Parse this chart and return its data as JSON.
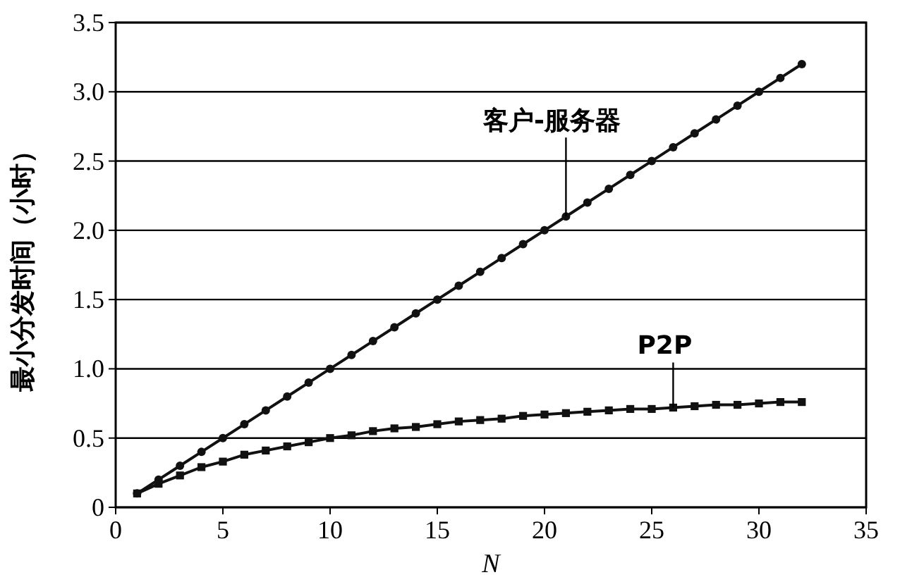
{
  "chart_data": {
    "type": "line",
    "xlabel": "N",
    "ylabel": "最小分发时间（小时）",
    "x": [
      1,
      2,
      3,
      4,
      5,
      6,
      7,
      8,
      9,
      10,
      11,
      12,
      13,
      14,
      15,
      16,
      17,
      18,
      19,
      20,
      21,
      22,
      23,
      24,
      25,
      26,
      27,
      28,
      29,
      30,
      31,
      32
    ],
    "series": [
      {
        "name": "客户-服务器",
        "color": "#111111",
        "marker": "circle",
        "values": [
          0.1,
          0.2,
          0.3,
          0.4,
          0.5,
          0.6,
          0.7,
          0.8,
          0.9,
          1.0,
          1.1,
          1.2,
          1.3,
          1.4,
          1.5,
          1.6,
          1.7,
          1.8,
          1.9,
          2.0,
          2.1,
          2.2,
          2.3,
          2.4,
          2.5,
          2.6,
          2.7,
          2.8,
          2.9,
          3.0,
          3.1,
          3.2
        ]
      },
      {
        "name": "P2P",
        "color": "#111111",
        "marker": "square",
        "values": [
          0.1,
          0.17,
          0.23,
          0.29,
          0.33,
          0.38,
          0.41,
          0.44,
          0.47,
          0.5,
          0.52,
          0.55,
          0.57,
          0.58,
          0.6,
          0.62,
          0.63,
          0.64,
          0.66,
          0.67,
          0.68,
          0.69,
          0.7,
          0.71,
          0.71,
          0.72,
          0.73,
          0.74,
          0.74,
          0.75,
          0.76,
          0.76
        ]
      }
    ],
    "xlim": [
      0,
      35
    ],
    "xticks": [
      0,
      5,
      10,
      15,
      20,
      25,
      30,
      35
    ],
    "ylim": [
      0,
      3.5
    ],
    "yticks": [
      0,
      {
        "value": 0.5,
        "label": "0.5"
      },
      {
        "value": 1,
        "label": "1.0"
      },
      {
        "value": 1.5,
        "label": "1.5"
      },
      {
        "value": 2,
        "label": "2.0"
      },
      {
        "value": 2.5,
        "label": "2.5"
      },
      {
        "value": 3,
        "label": "3.0"
      },
      {
        "value": 3.5,
        "label": "3.5"
      }
    ],
    "grid": "y"
  }
}
